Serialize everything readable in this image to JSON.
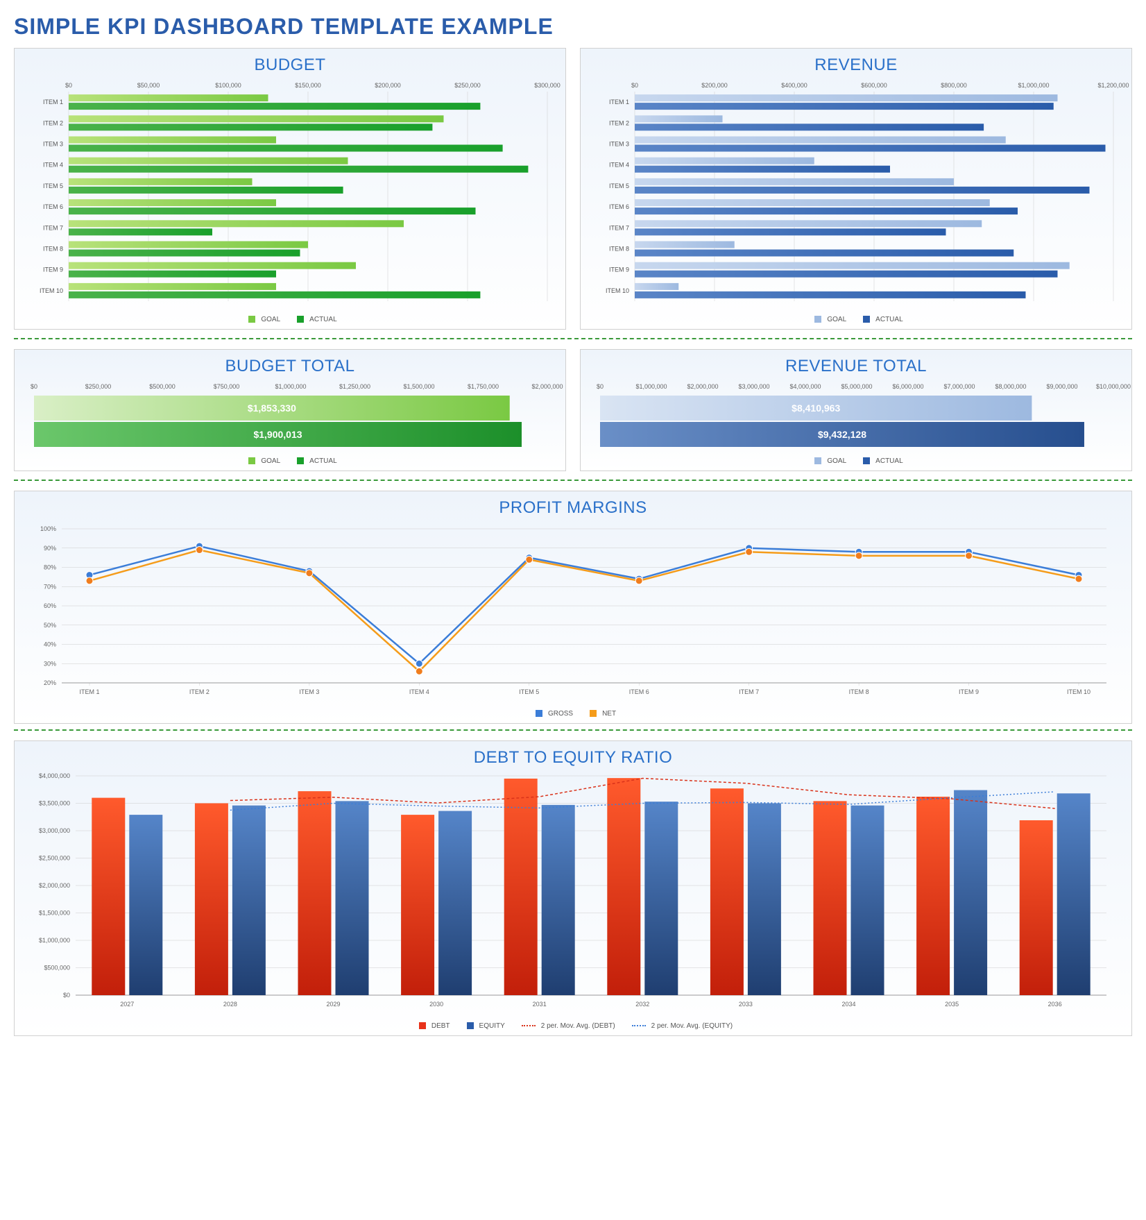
{
  "mainTitle": "SIMPLE KPI DASHBOARD TEMPLATE EXAMPLE",
  "divider_color": "#3a9a3a",
  "budget": {
    "title": "BUDGET",
    "type": "horizontal-bar-grouped",
    "categories": [
      "ITEM 1",
      "ITEM 2",
      "ITEM 3",
      "ITEM 4",
      "ITEM 5",
      "ITEM 6",
      "ITEM 7",
      "ITEM 8",
      "ITEM 9",
      "ITEM 10"
    ],
    "xTicks": [
      "$0",
      "$50,000",
      "$100,000",
      "$150,000",
      "$200,000",
      "$250,000",
      "$300,000"
    ],
    "xMax": 300000,
    "series": [
      {
        "name": "GOAL",
        "color_light": "#b8e27a",
        "color": "#7ac943",
        "values": [
          125000,
          235000,
          130000,
          175000,
          115000,
          130000,
          210000,
          150000,
          180000,
          130000
        ]
      },
      {
        "name": "ACTUAL",
        "color_light": "#4ab24a",
        "color": "#19a02b",
        "values": [
          258000,
          228000,
          272000,
          288000,
          172000,
          255000,
          90000,
          145000,
          130000,
          258000
        ]
      }
    ],
    "legend": [
      "GOAL",
      "ACTUAL"
    ],
    "legend_colors": [
      "#7ac943",
      "#19a02b"
    ]
  },
  "revenue": {
    "title": "REVENUE",
    "type": "horizontal-bar-grouped",
    "categories": [
      "ITEM 1",
      "ITEM 2",
      "ITEM 3",
      "ITEM 4",
      "ITEM 5",
      "ITEM 6",
      "ITEM 7",
      "ITEM 8",
      "ITEM 9",
      "ITEM 10"
    ],
    "xTicks": [
      "$0",
      "$200,000",
      "$400,000",
      "$600,000",
      "$800,000",
      "$1,000,000",
      "$1,200,000"
    ],
    "xMax": 1200000,
    "series": [
      {
        "name": "GOAL",
        "color_light": "#c7d7ee",
        "color": "#9db9e0",
        "values": [
          1060000,
          220000,
          930000,
          450000,
          800000,
          890000,
          870000,
          250000,
          1090000,
          110000
        ]
      },
      {
        "name": "ACTUAL",
        "color_light": "#5a85c7",
        "color": "#2a5caa",
        "values": [
          1050000,
          875000,
          1180000,
          640000,
          1140000,
          960000,
          780000,
          950000,
          1060000,
          980000
        ]
      }
    ],
    "legend": [
      "GOAL",
      "ACTUAL"
    ],
    "legend_colors": [
      "#9db9e0",
      "#2a5caa"
    ]
  },
  "budgetTotal": {
    "title": "BUDGET TOTAL",
    "type": "horizontal-bar",
    "xTicks": [
      "$0",
      "$250,000",
      "$500,000",
      "$750,000",
      "$1,000,000",
      "$1,250,000",
      "$1,500,000",
      "$1,750,000",
      "$2,000,000"
    ],
    "xMax": 2000000,
    "bars": [
      {
        "label": "$1,853,330",
        "value": 1853330,
        "grad_from": "#d9efc6",
        "grad_to": "#7ac943"
      },
      {
        "label": "$1,900,013",
        "value": 1900013,
        "grad_from": "#6bc76b",
        "grad_to": "#1c8f2a"
      }
    ],
    "legend": [
      "GOAL",
      "ACTUAL"
    ],
    "legend_colors": [
      "#7ac943",
      "#19a02b"
    ]
  },
  "revenueTotal": {
    "title": "REVENUE TOTAL",
    "type": "horizontal-bar",
    "xTicks": [
      "$0",
      "$1,000,000",
      "$2,000,000",
      "$3,000,000",
      "$4,000,000",
      "$5,000,000",
      "$6,000,000",
      "$7,000,000",
      "$8,000,000",
      "$9,000,000",
      "$10,000,000"
    ],
    "xMax": 10000000,
    "bars": [
      {
        "label": "$8,410,963",
        "value": 8410963,
        "grad_from": "#d9e4f3",
        "grad_to": "#9db9e0"
      },
      {
        "label": "$9,432,128",
        "value": 9432128,
        "grad_from": "#6a8fc7",
        "grad_to": "#264e8e"
      }
    ],
    "legend": [
      "GOAL",
      "ACTUAL"
    ],
    "legend_colors": [
      "#9db9e0",
      "#2a5caa"
    ]
  },
  "profitMargins": {
    "title": "PROFIT MARGINS",
    "type": "line",
    "categories": [
      "ITEM 1",
      "ITEM 2",
      "ITEM 3",
      "ITEM 4",
      "ITEM 5",
      "ITEM 6",
      "ITEM 7",
      "ITEM 8",
      "ITEM 9",
      "ITEM 10"
    ],
    "yTicks": [
      "20%",
      "30%",
      "40%",
      "50%",
      "60%",
      "70%",
      "80%",
      "90%",
      "100%"
    ],
    "yMin": 20,
    "yMax": 100,
    "series": [
      {
        "name": "GROSS",
        "color": "#3b7dd8",
        "marker": "#3b7dd8",
        "values": [
          76,
          91,
          78,
          30,
          85,
          74,
          90,
          88,
          88,
          76
        ]
      },
      {
        "name": "NET",
        "color": "#f59c1a",
        "marker": "#f07d1e",
        "values": [
          73,
          89,
          77,
          26,
          84,
          73,
          88,
          86,
          86,
          74
        ]
      }
    ],
    "legend": [
      "GROSS",
      "NET"
    ],
    "legend_colors": [
      "#3b7dd8",
      "#f59c1a"
    ]
  },
  "debtEquity": {
    "title": "DEBT TO EQUITY RATIO",
    "type": "grouped-bar",
    "categories": [
      "2027",
      "2028",
      "2029",
      "2030",
      "2031",
      "2032",
      "2033",
      "2034",
      "2035",
      "2036"
    ],
    "yTicks": [
      "$0",
      "$500,000",
      "$1,000,000",
      "$1,500,000",
      "$2,000,000",
      "$2,500,000",
      "$3,000,000",
      "$3,500,000",
      "$4,000,000"
    ],
    "yMax": 4000000,
    "series": [
      {
        "name": "DEBT",
        "grad_from": "#ff5a2c",
        "grad_to": "#c21f0a",
        "values": [
          3600000,
          3500000,
          3720000,
          3290000,
          3950000,
          3960000,
          3770000,
          3540000,
          3620000,
          3190000
        ]
      },
      {
        "name": "EQUITY",
        "grad_from": "#5585c9",
        "grad_to": "#1f3e70",
        "values": [
          3290000,
          3460000,
          3540000,
          3360000,
          3470000,
          3530000,
          3500000,
          3460000,
          3740000,
          3680000
        ]
      }
    ],
    "movAvg": [
      {
        "name": "2 per. Mov. Avg. (DEBT)",
        "color": "#d9321a",
        "dash": "4,3",
        "values": [
          null,
          3550000,
          3610000,
          3505000,
          3620000,
          3955000,
          3865000,
          3655000,
          3580000,
          3405000
        ]
      },
      {
        "name": "2 per. Mov. Avg. (EQUITY)",
        "color": "#3b7dd8",
        "dash": "2,3",
        "values": [
          null,
          3375000,
          3500000,
          3450000,
          3415000,
          3500000,
          3515000,
          3480000,
          3600000,
          3710000
        ]
      }
    ],
    "legend": [
      "DEBT",
      "EQUITY",
      "2 per. Mov. Avg. (DEBT)",
      "2 per. Mov. Avg. (EQUITY)"
    ],
    "legend_colors": [
      "#e8321a",
      "#2a5caa",
      "#d9321a",
      "#3b7dd8"
    ]
  }
}
